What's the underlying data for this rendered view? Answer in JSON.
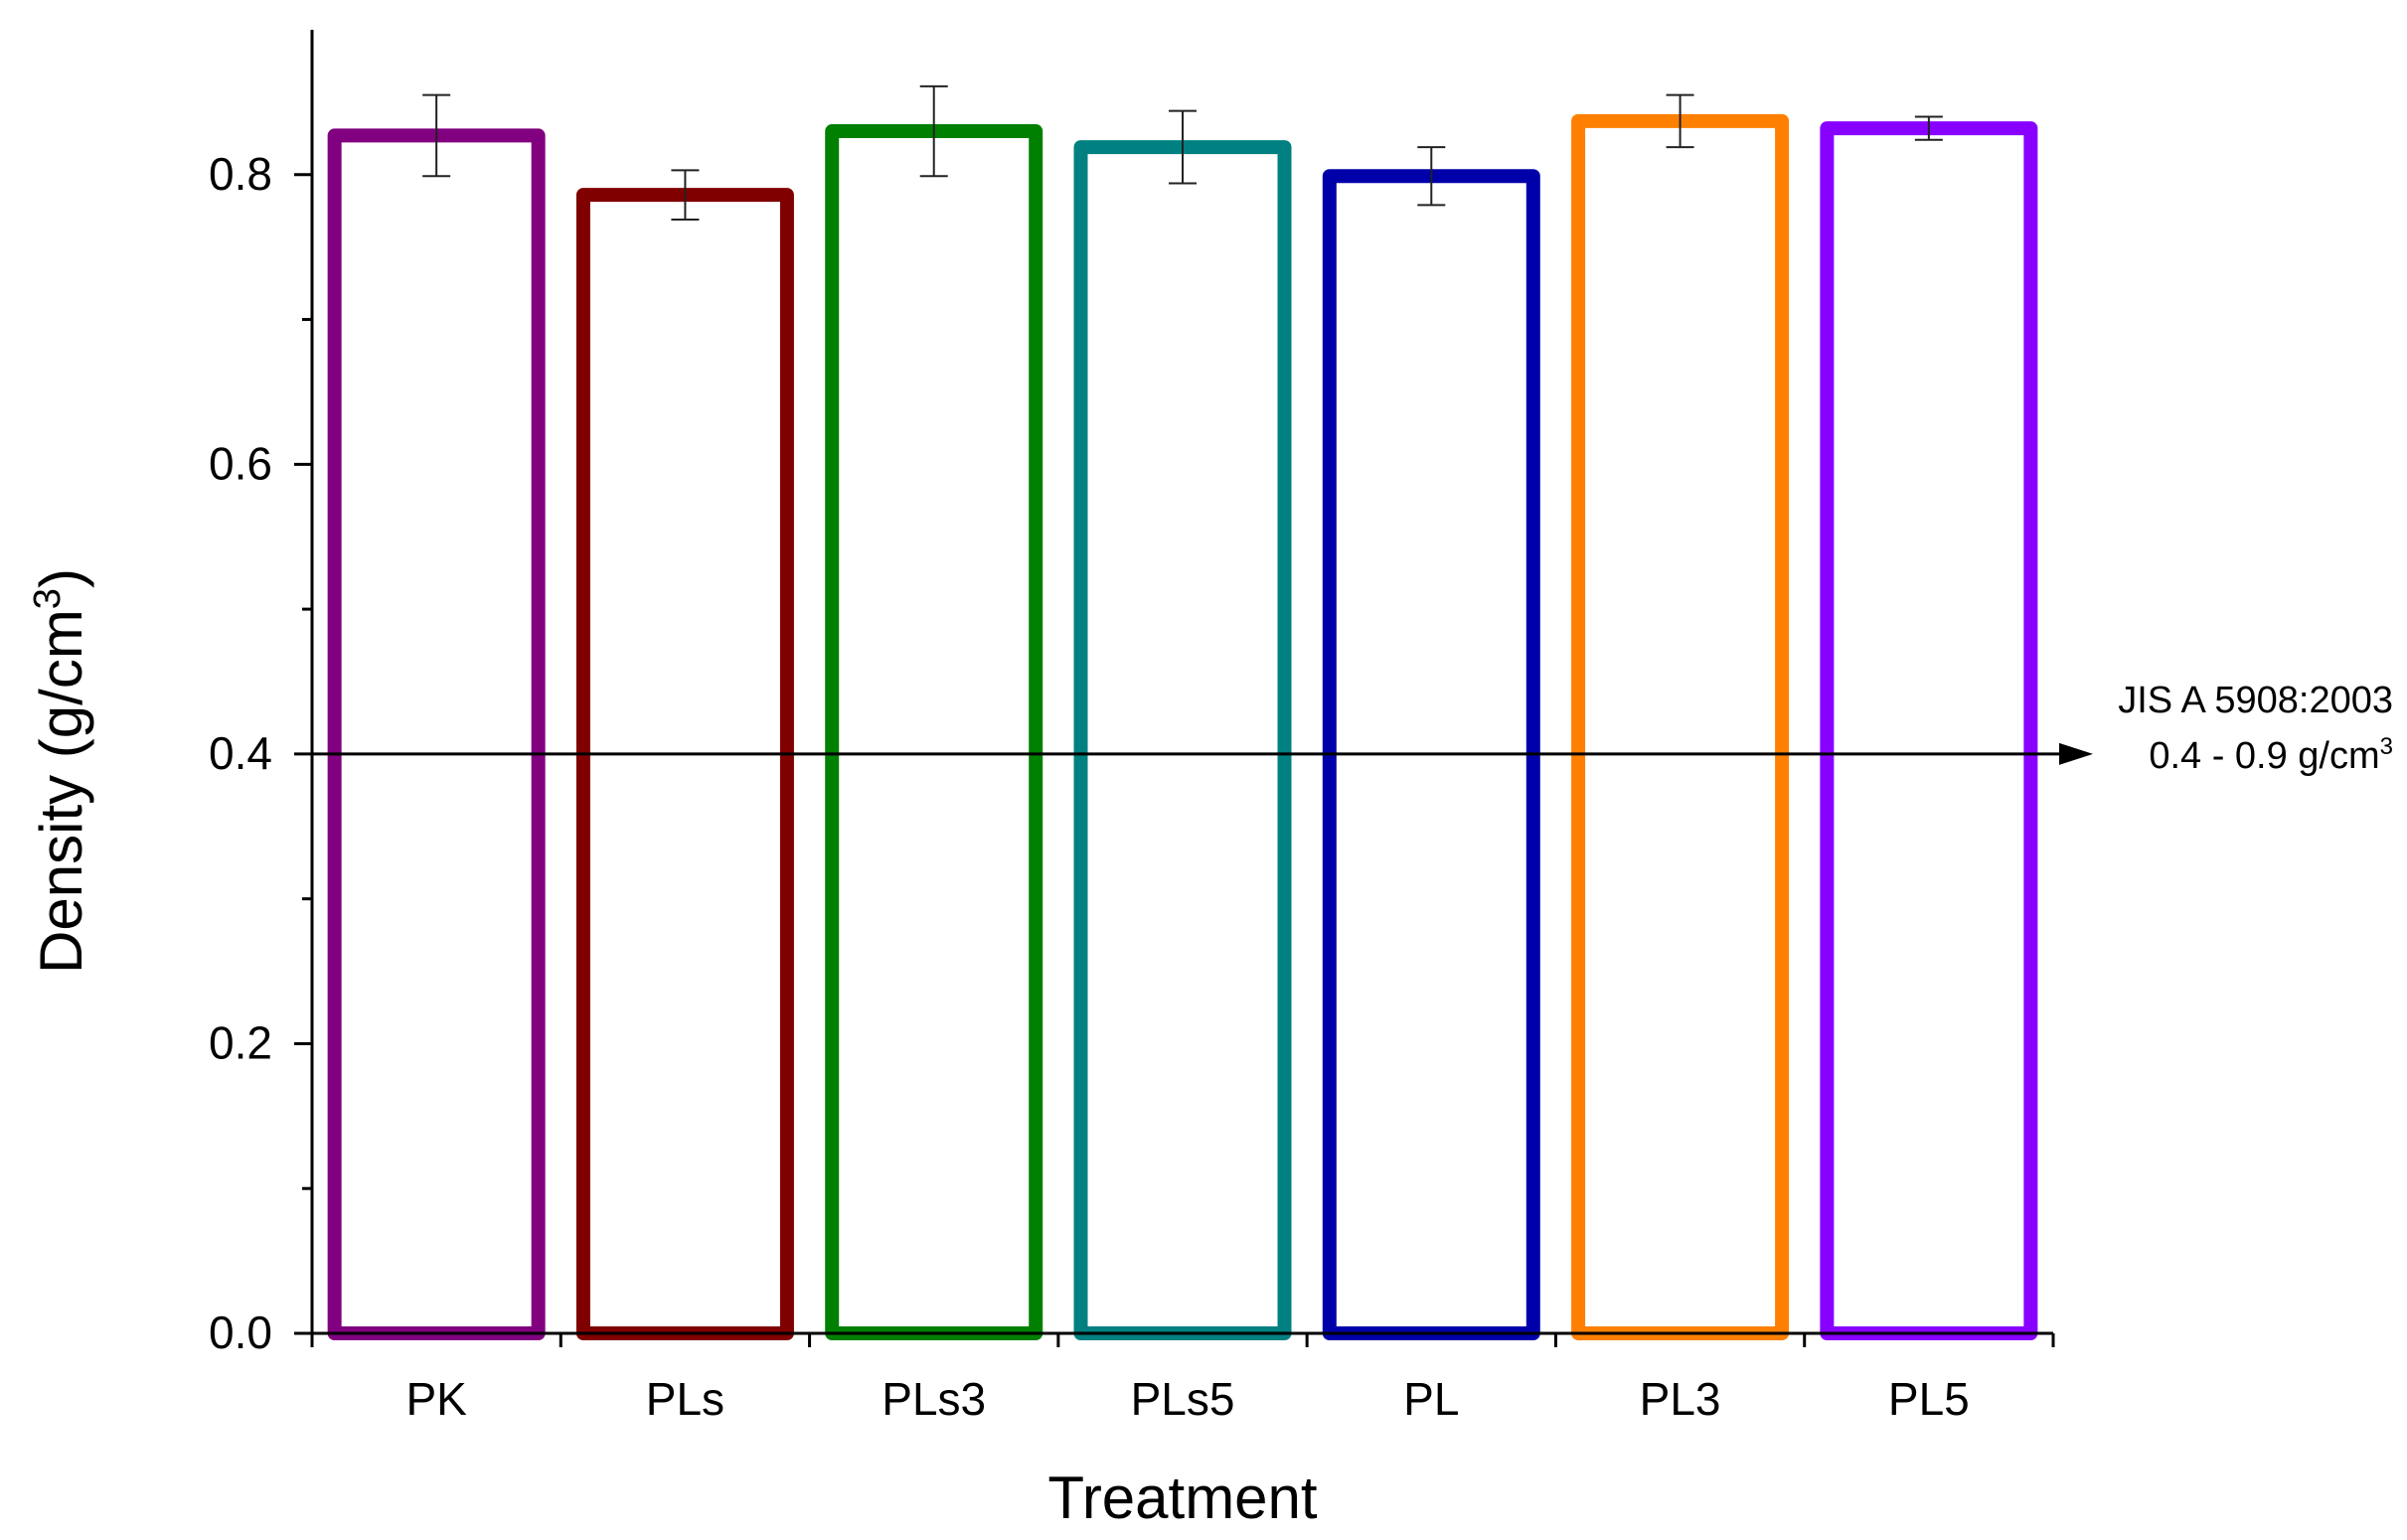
{
  "chart_data": {
    "type": "bar",
    "title": "",
    "xlabel": "Treatment",
    "ylabel_main": "Density (g/cm",
    "ylabel_sup": "3",
    "ylabel_end": ")",
    "categories": [
      "PK",
      "PLs",
      "PLs3",
      "PLs5",
      "PL",
      "PL3",
      "PL5"
    ],
    "values": [
      0.827,
      0.786,
      0.83,
      0.819,
      0.799,
      0.837,
      0.832
    ],
    "errors": [
      0.028,
      0.017,
      0.031,
      0.025,
      0.02,
      0.018,
      0.008
    ],
    "colors": [
      "#800080",
      "#800000",
      "#008000",
      "#008080",
      "#0000AA",
      "#FF8000",
      "#8800FF"
    ],
    "ylim": [
      0.0,
      0.9
    ],
    "yticks": [
      0.0,
      0.2,
      0.4,
      0.6,
      0.8
    ],
    "ytick_labels": [
      "0.0",
      "0.2",
      "0.4",
      "0.6",
      "0.8"
    ],
    "grid": false,
    "reference_line": {
      "value": 0.4,
      "label_line1": "JIS A 5908:2003",
      "label_line2_main": "0.4 - 0.9 g/cm",
      "label_line2_sup": "3"
    }
  }
}
